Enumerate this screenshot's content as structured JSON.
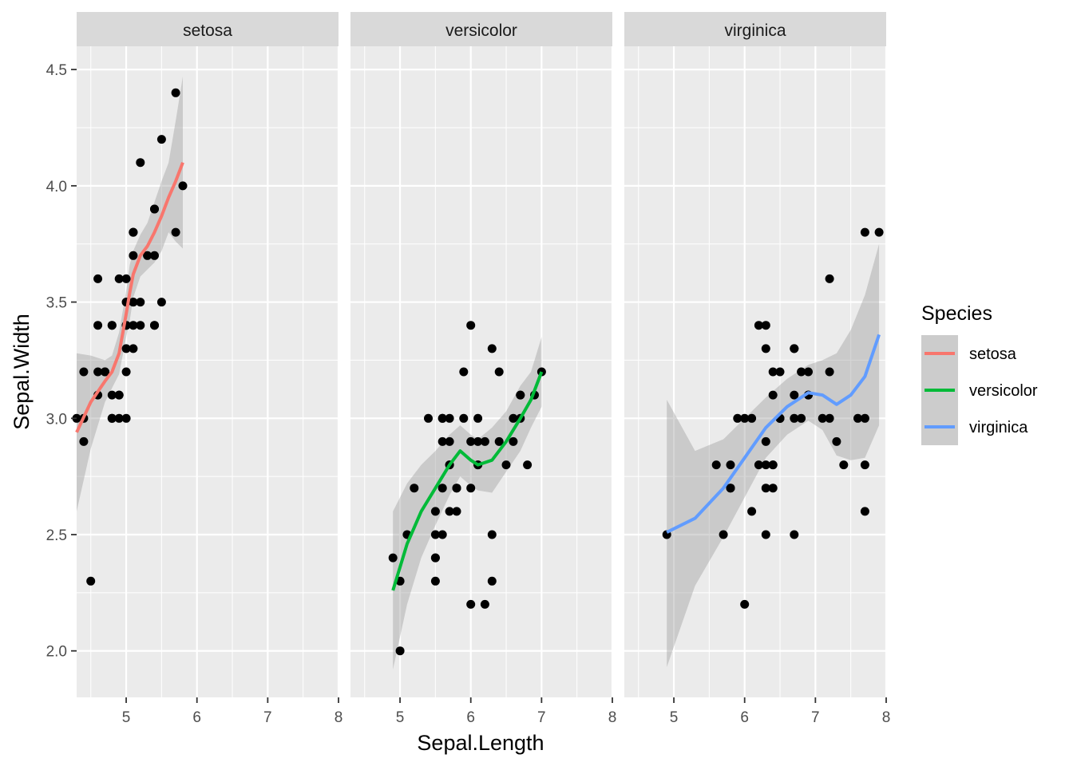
{
  "chart_data": {
    "type": "scatter",
    "facet_by": "Species",
    "facets": [
      "setosa",
      "versicolor",
      "virginica"
    ],
    "xlabel": "Sepal.Length",
    "ylabel": "Sepal.Width",
    "xlim": [
      4.3,
      8.0
    ],
    "ylim": [
      1.8,
      4.6
    ],
    "x_ticks": [
      5,
      6,
      7,
      8
    ],
    "y_ticks": [
      "2.0",
      "2.5",
      "3.0",
      "3.5",
      "4.0",
      "4.5"
    ],
    "grid": true,
    "point_color": "#000000",
    "band_color": "#999999",
    "panel_background": "#ebebeb",
    "strip_background": "#d9d9d9",
    "legend": {
      "title": "Species",
      "position": "right",
      "items": [
        {
          "label": "setosa",
          "color": "#F8766D"
        },
        {
          "label": "versicolor",
          "color": "#00BA38"
        },
        {
          "label": "virginica",
          "color": "#619CFF"
        }
      ]
    },
    "panels": [
      {
        "name": "setosa",
        "color": "#F8766D",
        "points": [
          [
            5.1,
            3.5
          ],
          [
            4.9,
            3.0
          ],
          [
            4.7,
            3.2
          ],
          [
            4.6,
            3.1
          ],
          [
            5.0,
            3.6
          ],
          [
            5.4,
            3.9
          ],
          [
            4.6,
            3.4
          ],
          [
            5.0,
            3.4
          ],
          [
            4.4,
            2.9
          ],
          [
            4.9,
            3.1
          ],
          [
            5.4,
            3.7
          ],
          [
            4.8,
            3.4
          ],
          [
            4.8,
            3.0
          ],
          [
            4.3,
            3.0
          ],
          [
            5.8,
            4.0
          ],
          [
            5.7,
            4.4
          ],
          [
            5.4,
            3.9
          ],
          [
            5.1,
            3.5
          ],
          [
            5.7,
            3.8
          ],
          [
            5.1,
            3.8
          ],
          [
            5.4,
            3.4
          ],
          [
            5.1,
            3.7
          ],
          [
            4.6,
            3.6
          ],
          [
            5.1,
            3.3
          ],
          [
            4.8,
            3.4
          ],
          [
            5.0,
            3.0
          ],
          [
            5.0,
            3.4
          ],
          [
            5.2,
            3.5
          ],
          [
            5.2,
            3.4
          ],
          [
            4.7,
            3.2
          ],
          [
            4.8,
            3.1
          ],
          [
            5.4,
            3.4
          ],
          [
            5.2,
            4.1
          ],
          [
            5.5,
            4.2
          ],
          [
            4.9,
            3.1
          ],
          [
            5.0,
            3.2
          ],
          [
            5.5,
            3.5
          ],
          [
            4.9,
            3.6
          ],
          [
            4.4,
            3.0
          ],
          [
            5.1,
            3.4
          ],
          [
            5.0,
            3.5
          ],
          [
            4.5,
            2.3
          ],
          [
            4.4,
            3.2
          ],
          [
            5.0,
            3.5
          ],
          [
            5.1,
            3.8
          ],
          [
            4.8,
            3.0
          ],
          [
            5.1,
            3.8
          ],
          [
            4.6,
            3.2
          ],
          [
            5.3,
            3.7
          ],
          [
            5.0,
            3.3
          ]
        ],
        "smooth": [
          [
            4.3,
            2.94
          ],
          [
            4.5,
            3.07
          ],
          [
            4.7,
            3.16
          ],
          [
            4.8,
            3.2
          ],
          [
            4.9,
            3.28
          ],
          [
            5.0,
            3.45
          ],
          [
            5.05,
            3.54
          ],
          [
            5.1,
            3.62
          ],
          [
            5.2,
            3.7
          ],
          [
            5.3,
            3.74
          ],
          [
            5.4,
            3.8
          ],
          [
            5.5,
            3.87
          ],
          [
            5.6,
            3.95
          ],
          [
            5.7,
            4.02
          ],
          [
            5.8,
            4.1
          ]
        ],
        "band_upper": [
          3.28,
          3.27,
          3.25,
          3.27,
          3.37,
          3.55,
          3.66,
          3.72,
          3.79,
          3.84,
          3.93,
          4.02,
          4.1,
          4.28,
          4.47
        ],
        "band_lower": [
          2.6,
          2.87,
          3.07,
          3.13,
          3.19,
          3.35,
          3.42,
          3.52,
          3.61,
          3.64,
          3.67,
          3.72,
          3.8,
          3.76,
          3.73
        ]
      },
      {
        "name": "versicolor",
        "color": "#00BA38",
        "points": [
          [
            7.0,
            3.2
          ],
          [
            6.4,
            3.2
          ],
          [
            6.9,
            3.1
          ],
          [
            5.5,
            2.3
          ],
          [
            6.5,
            2.8
          ],
          [
            5.7,
            2.8
          ],
          [
            6.3,
            3.3
          ],
          [
            4.9,
            2.4
          ],
          [
            6.6,
            2.9
          ],
          [
            5.2,
            2.7
          ],
          [
            5.0,
            2.0
          ],
          [
            5.9,
            3.0
          ],
          [
            6.0,
            2.2
          ],
          [
            6.1,
            2.9
          ],
          [
            5.6,
            2.9
          ],
          [
            6.7,
            3.1
          ],
          [
            5.6,
            3.0
          ],
          [
            5.8,
            2.7
          ],
          [
            6.2,
            2.2
          ],
          [
            5.6,
            2.5
          ],
          [
            5.9,
            3.2
          ],
          [
            6.1,
            2.8
          ],
          [
            6.3,
            2.5
          ],
          [
            6.1,
            2.8
          ],
          [
            6.4,
            2.9
          ],
          [
            6.6,
            3.0
          ],
          [
            6.8,
            2.8
          ],
          [
            6.7,
            3.0
          ],
          [
            6.0,
            2.9
          ],
          [
            5.7,
            2.6
          ],
          [
            5.5,
            2.4
          ],
          [
            5.5,
            2.4
          ],
          [
            5.8,
            2.7
          ],
          [
            6.0,
            2.7
          ],
          [
            5.4,
            3.0
          ],
          [
            6.0,
            3.4
          ],
          [
            6.7,
            3.1
          ],
          [
            6.3,
            2.3
          ],
          [
            5.6,
            3.0
          ],
          [
            5.5,
            2.5
          ],
          [
            5.5,
            2.6
          ],
          [
            6.1,
            3.0
          ],
          [
            5.8,
            2.6
          ],
          [
            5.0,
            2.3
          ],
          [
            5.6,
            2.7
          ],
          [
            5.7,
            3.0
          ],
          [
            5.7,
            2.9
          ],
          [
            6.2,
            2.9
          ],
          [
            5.1,
            2.5
          ],
          [
            5.7,
            2.8
          ]
        ],
        "smooth": [
          [
            4.9,
            2.26
          ],
          [
            5.1,
            2.46
          ],
          [
            5.3,
            2.6
          ],
          [
            5.5,
            2.7
          ],
          [
            5.7,
            2.8
          ],
          [
            5.85,
            2.86
          ],
          [
            6.0,
            2.82
          ],
          [
            6.1,
            2.8
          ],
          [
            6.3,
            2.82
          ],
          [
            6.5,
            2.9
          ],
          [
            6.7,
            3.0
          ],
          [
            6.85,
            3.08
          ],
          [
            7.0,
            3.2
          ]
        ],
        "band_upper": [
          2.6,
          2.72,
          2.8,
          2.86,
          2.93,
          2.97,
          2.93,
          2.91,
          2.96,
          3.03,
          3.14,
          3.2,
          3.35
        ],
        "band_lower": [
          1.92,
          2.2,
          2.4,
          2.54,
          2.67,
          2.75,
          2.71,
          2.69,
          2.68,
          2.77,
          2.86,
          2.96,
          3.05
        ]
      },
      {
        "name": "virginica",
        "color": "#619CFF",
        "points": [
          [
            6.3,
            3.3
          ],
          [
            5.8,
            2.7
          ],
          [
            7.1,
            3.0
          ],
          [
            6.3,
            2.9
          ],
          [
            6.5,
            3.0
          ],
          [
            7.6,
            3.0
          ],
          [
            4.9,
            2.5
          ],
          [
            7.3,
            2.9
          ],
          [
            6.7,
            2.5
          ],
          [
            7.2,
            3.6
          ],
          [
            6.5,
            3.2
          ],
          [
            6.4,
            2.7
          ],
          [
            6.8,
            3.0
          ],
          [
            5.7,
            2.5
          ],
          [
            5.8,
            2.8
          ],
          [
            6.4,
            3.2
          ],
          [
            6.5,
            3.0
          ],
          [
            7.7,
            3.8
          ],
          [
            7.7,
            2.6
          ],
          [
            6.0,
            2.2
          ],
          [
            6.9,
            3.2
          ],
          [
            5.6,
            2.8
          ],
          [
            7.7,
            2.8
          ],
          [
            6.3,
            2.7
          ],
          [
            6.7,
            3.3
          ],
          [
            7.2,
            3.2
          ],
          [
            6.2,
            2.8
          ],
          [
            6.1,
            3.0
          ],
          [
            6.4,
            2.8
          ],
          [
            7.2,
            3.0
          ],
          [
            7.4,
            2.8
          ],
          [
            7.9,
            3.8
          ],
          [
            6.4,
            2.8
          ],
          [
            6.3,
            2.8
          ],
          [
            6.1,
            2.6
          ],
          [
            7.7,
            3.0
          ],
          [
            6.3,
            3.4
          ],
          [
            6.4,
            3.1
          ],
          [
            6.0,
            3.0
          ],
          [
            6.9,
            3.1
          ],
          [
            6.7,
            3.1
          ],
          [
            6.9,
            3.1
          ],
          [
            5.8,
            2.7
          ],
          [
            6.8,
            3.2
          ],
          [
            6.7,
            3.3
          ],
          [
            6.7,
            3.0
          ],
          [
            6.3,
            2.5
          ],
          [
            6.5,
            3.0
          ],
          [
            6.2,
            3.4
          ],
          [
            5.9,
            3.0
          ]
        ],
        "smooth": [
          [
            4.9,
            2.51
          ],
          [
            5.3,
            2.57
          ],
          [
            5.7,
            2.7
          ],
          [
            6.0,
            2.83
          ],
          [
            6.3,
            2.96
          ],
          [
            6.6,
            3.05
          ],
          [
            6.9,
            3.11
          ],
          [
            7.1,
            3.1
          ],
          [
            7.3,
            3.06
          ],
          [
            7.5,
            3.1
          ],
          [
            7.7,
            3.18
          ],
          [
            7.9,
            3.36
          ]
        ],
        "band_upper": [
          3.08,
          2.86,
          2.91,
          3.0,
          3.09,
          3.17,
          3.23,
          3.25,
          3.28,
          3.38,
          3.53,
          3.75
        ],
        "band_lower": [
          1.93,
          2.28,
          2.49,
          2.66,
          2.83,
          2.93,
          2.99,
          2.95,
          2.84,
          2.82,
          2.83,
          2.97
        ]
      }
    ]
  }
}
